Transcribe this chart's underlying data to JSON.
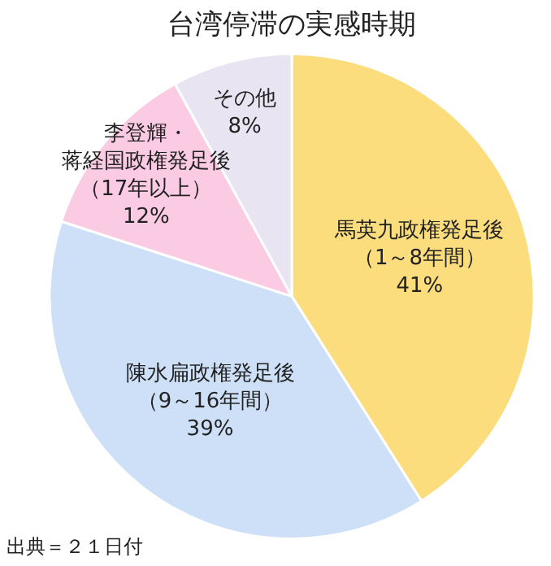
{
  "chart_data": {
    "type": "pie",
    "title": "台湾停滞の実感時期",
    "categories": [
      "馬英九政権発足後（1～8年間）",
      "陳水扁政権発足後（9～16年間）",
      "李登輝・蒋経国政権発足後（17年以上）",
      "その他"
    ],
    "values": [
      41,
      39,
      12,
      8
    ],
    "colors": [
      "#fbdd7e",
      "#cde0f7",
      "#fbcbe3",
      "#e8e4f1"
    ],
    "value_labels": [
      "41%",
      "39%",
      "12%",
      "8%"
    ],
    "legend": false,
    "annotations": [
      "出典＝２１日付"
    ]
  }
}
